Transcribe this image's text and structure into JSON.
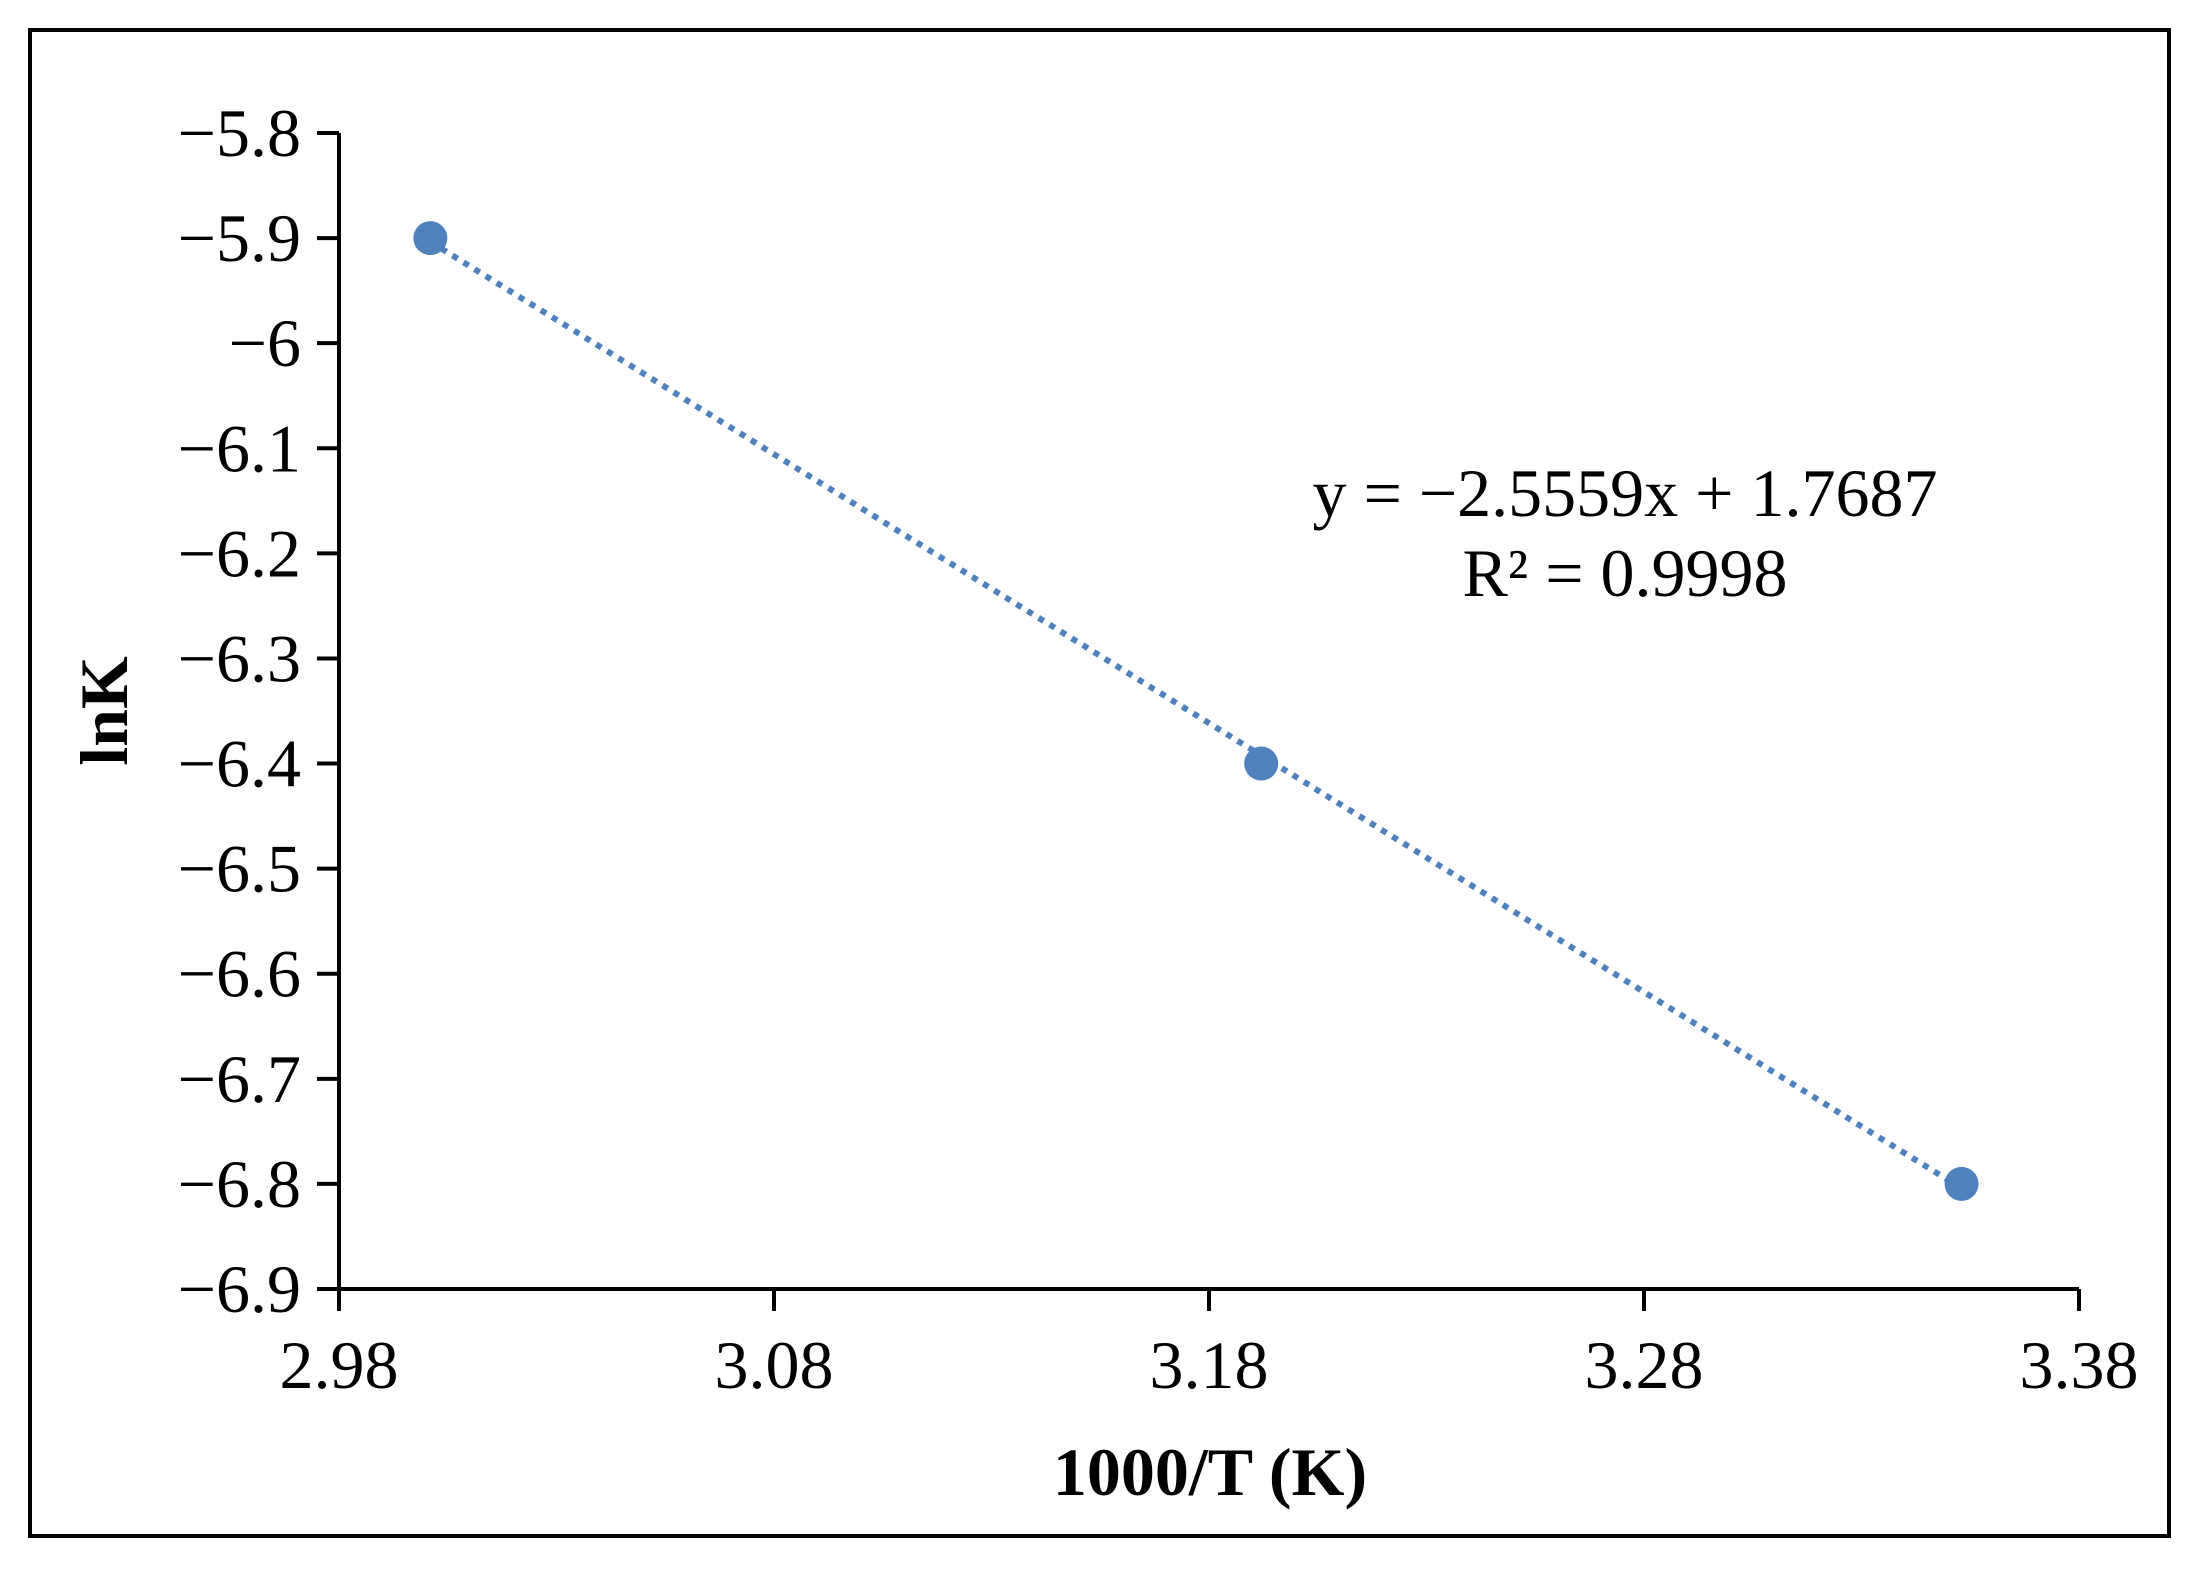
{
  "chart_data": {
    "type": "scatter",
    "title": "",
    "xlabel": "1000/T (K)",
    "ylabel": "lnK",
    "xlim": [
      2.98,
      3.38
    ],
    "ylim": [
      -6.9,
      -5.8
    ],
    "xticks": [
      "2.98",
      "3.08",
      "3.18",
      "3.28",
      "3.38"
    ],
    "yticks": [
      "−5.8",
      "−5.9",
      "−6",
      "−6.1",
      "−6.2",
      "−6.3",
      "−6.4",
      "−6.5",
      "−6.6",
      "−6.7",
      "−6.8",
      "−6.9"
    ],
    "grid": false,
    "legend": "none",
    "series": [
      {
        "x": [
          3.001,
          3.192,
          3.353
        ],
        "y": [
          -5.9,
          -6.4,
          -6.8
        ],
        "color": "#4f81bd"
      }
    ],
    "trendline": {
      "kind": "linear",
      "style": "dotted",
      "color": "#4f81bd",
      "slope": -2.5559,
      "intercept": 1.7687,
      "x_range": [
        3.001,
        3.353
      ]
    },
    "annotations": {
      "equation": "y = −2.5559x + 1.7687",
      "r_squared": "R² = 0.9998"
    }
  }
}
